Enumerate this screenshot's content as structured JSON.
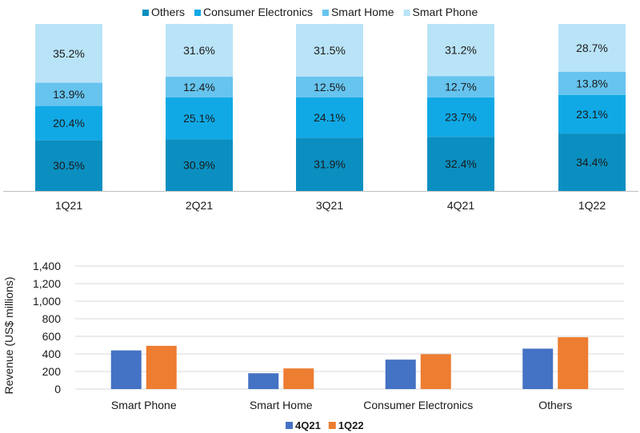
{
  "chart_data": [
    {
      "type": "bar",
      "stacked": true,
      "percent": true,
      "categories": [
        "1Q21",
        "2Q21",
        "3Q21",
        "4Q21",
        "1Q22"
      ],
      "series": [
        {
          "name": "Others",
          "color": "#0a8fc0",
          "values": [
            30.5,
            30.9,
            31.9,
            32.4,
            34.4
          ],
          "labels": [
            "30.5%",
            "30.9%",
            "31.9%",
            "32.4%",
            "34.4%"
          ]
        },
        {
          "name": "Consumer Electronics",
          "color": "#10a9e6",
          "values": [
            20.4,
            25.1,
            24.1,
            23.7,
            23.1
          ],
          "labels": [
            "20.4%",
            "25.1%",
            "24.1%",
            "23.7%",
            "23.1%"
          ]
        },
        {
          "name": "Smart Home",
          "color": "#66c4ef",
          "values": [
            13.9,
            12.4,
            12.5,
            12.7,
            13.8
          ],
          "labels": [
            "13.9%",
            "12.4%",
            "12.5%",
            "12.7%",
            "13.8%"
          ]
        },
        {
          "name": "Smart Phone",
          "color": "#b9e3f7",
          "values": [
            35.2,
            31.6,
            31.5,
            31.2,
            28.7
          ],
          "labels": [
            "35.2%",
            "31.6%",
            "31.5%",
            "31.2%",
            "28.7%"
          ]
        }
      ],
      "legend_position": "top",
      "ylim": [
        0,
        100
      ]
    },
    {
      "type": "bar",
      "categories": [
        "Smart Phone",
        "Smart Home",
        "Consumer Electronics",
        "Others"
      ],
      "series": [
        {
          "name": "4Q21",
          "color": "#4472c4",
          "values": [
            440,
            180,
            335,
            460
          ]
        },
        {
          "name": "1Q22",
          "color": "#ed7d31",
          "values": [
            492,
            235,
            397,
            590
          ]
        }
      ],
      "ylabel": "Revenue (US$  millions)",
      "ylim": [
        0,
        1400
      ],
      "yticks": [
        0,
        200,
        400,
        600,
        800,
        1000,
        1200,
        1400
      ],
      "ytick_labels": [
        "0",
        "200",
        "400",
        "600",
        "800",
        "1,000",
        "1,200",
        "1,400"
      ],
      "grid": true,
      "legend_position": "bottom"
    }
  ]
}
